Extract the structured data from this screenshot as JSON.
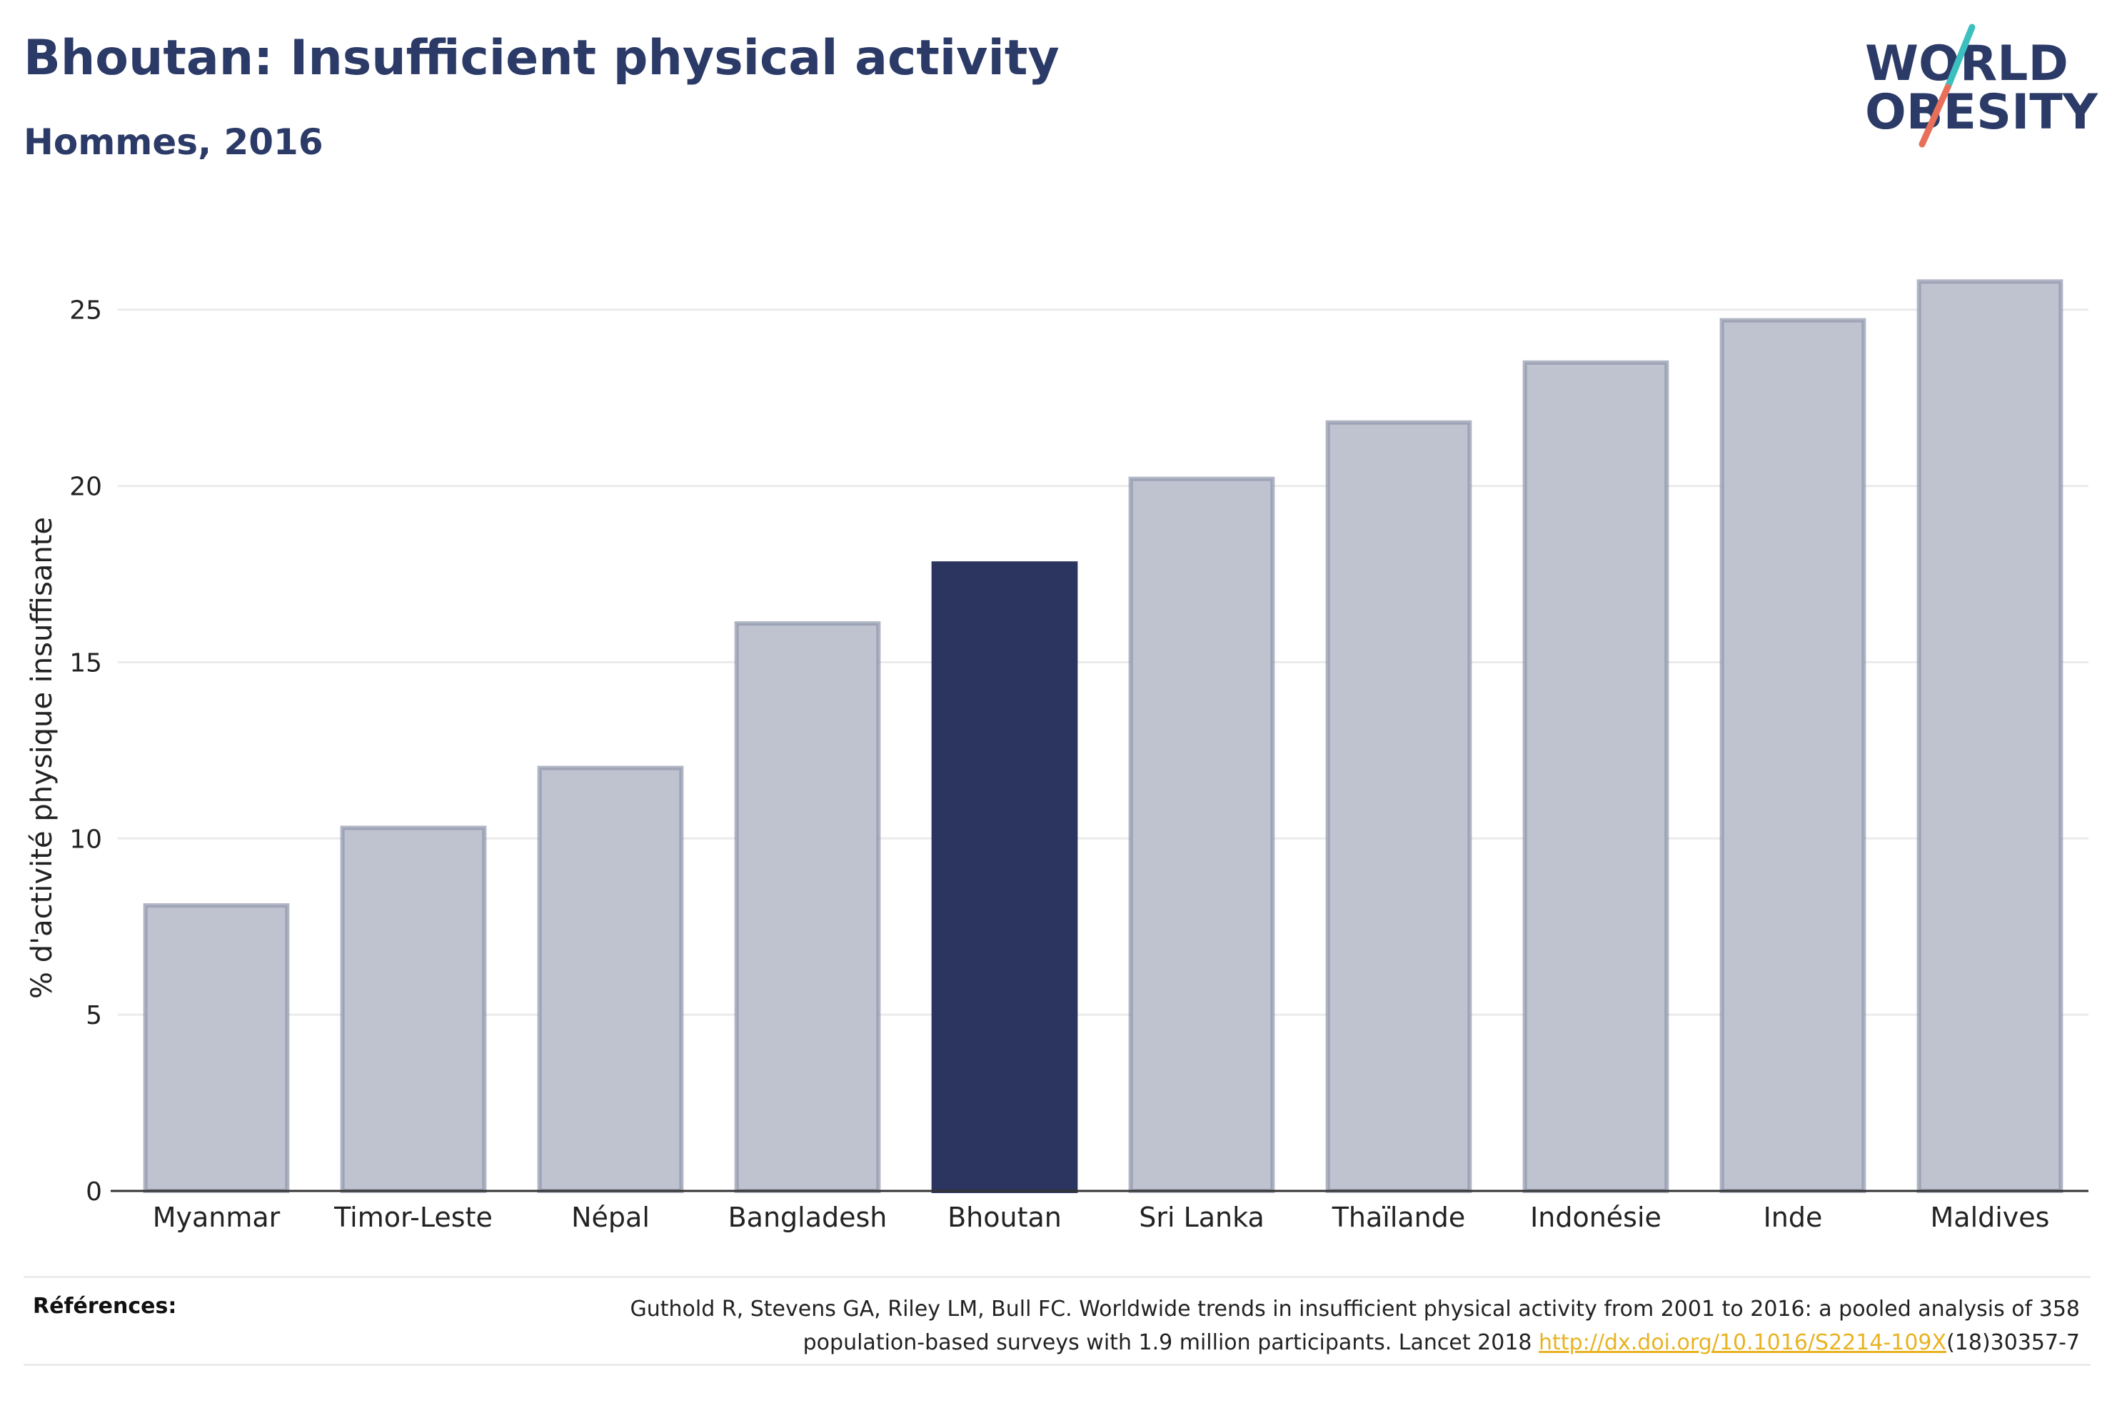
{
  "header": {
    "title": "Bhoutan: Insufficient physical activity",
    "subtitle": "Hommes, 2016"
  },
  "logo": {
    "line1": "WORLD",
    "line2": "OBESITY",
    "colors": {
      "text": "#2b3a67",
      "slash_top": "#3bbfbf",
      "slash_bottom": "#e8705a"
    }
  },
  "chart_data": {
    "type": "bar",
    "categories": [
      "Myanmar",
      "Timor-Leste",
      "Népal",
      "Bangladesh",
      "Bhoutan",
      "Sri Lanka",
      "Thaïlande",
      "Indonésie",
      "Inde",
      "Maldives"
    ],
    "values": [
      8.1,
      10.3,
      12.0,
      16.1,
      17.8,
      20.2,
      21.8,
      23.5,
      24.7,
      25.8
    ],
    "highlight": "Bhoutan",
    "title": "",
    "xlabel": "",
    "ylabel": "% d'activité physique insuffisante",
    "ylim": [
      0,
      27
    ],
    "yticks": [
      0,
      5,
      10,
      15,
      20,
      25
    ],
    "grid": true,
    "colors": {
      "bar": "#bfc2cf",
      "bar_border": "#8f95ab",
      "highlight": "#2b3560",
      "grid": "#ebebeb",
      "axis": "#333333"
    }
  },
  "references": {
    "label": "Références:",
    "text_before": "Guthold R, Stevens GA, Riley LM, Bull FC. Worldwide trends in insufficient physical activity from 2001 to 2016: a pooled analysis of 358 population-based surveys with 1.9 million participants. Lancet 2018 ",
    "link": "http://dx.doi.org/10.1016/S2214-109X",
    "text_after": "(18)30357-7"
  }
}
